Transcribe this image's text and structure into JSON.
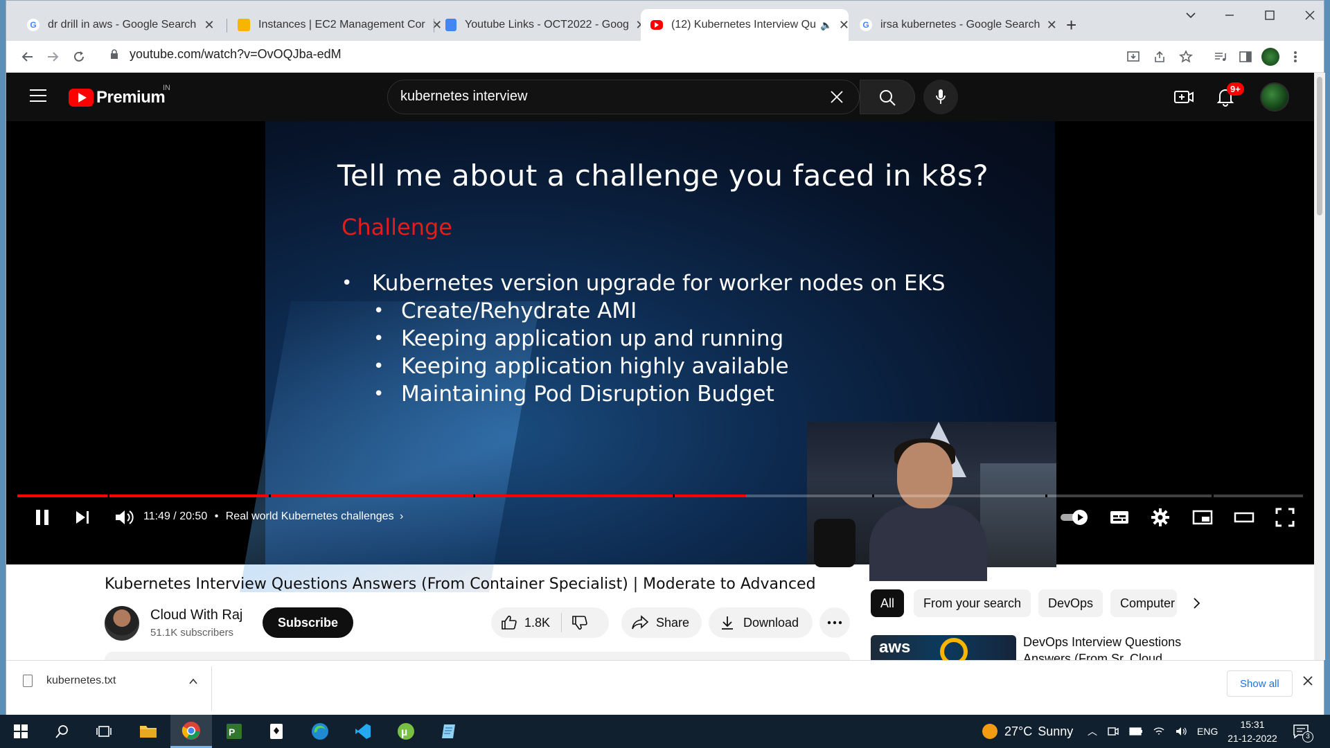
{
  "browser": {
    "tabs": [
      {
        "title": "dr drill in aws - Google Search",
        "favicon": "google-icon",
        "active": false
      },
      {
        "title": "Instances | EC2 Management Cor",
        "favicon": "aws-icon",
        "active": false
      },
      {
        "title": "Youtube Links - OCT2022 - Goog",
        "favicon": "google-docs-icon",
        "active": false
      },
      {
        "title": "(12) Kubernetes Interview Qu",
        "favicon": "youtube-icon",
        "active": true,
        "audio": true
      },
      {
        "title": "irsa kubernetes - Google Search",
        "favicon": "google-icon",
        "active": false
      }
    ],
    "url": "youtube.com/watch?v=OvOQJba-edM"
  },
  "youtube": {
    "logo_text": "Premium",
    "country_code": "IN",
    "search_value": "kubernetes interview",
    "notification_count": "9+",
    "player": {
      "slide_title": "Tell me about a challenge you faced in k8s?",
      "slide_subtitle": "Challenge",
      "bullets": [
        {
          "text": "Kubernetes version upgrade for worker nodes on EKS",
          "level": 1
        },
        {
          "text": "Create/Rehydrate AMI",
          "level": 2
        },
        {
          "text": "Keeping application up and running",
          "level": 2
        },
        {
          "text": "Keeping application highly available",
          "level": 2
        },
        {
          "text": "Maintaining Pod Disruption Budget",
          "level": 2
        }
      ],
      "time_current": "11:49",
      "time_total": "20:50",
      "time_display": "11:49 / 20:50",
      "chapter": "Real world Kubernetes challenges",
      "progress_fraction": 0.567
    },
    "video_title": "Kubernetes Interview Questions Answers (From Container Specialist) | Moderate to Advanced",
    "channel": {
      "name": "Cloud With Raj",
      "subscribers": "51.1K subscribers",
      "subscribe_label": "Subscribe"
    },
    "actions": {
      "likes": "1.8K",
      "share_label": "Share",
      "download_label": "Download"
    },
    "chips": [
      "All",
      "From your search",
      "DevOps",
      "Computer"
    ],
    "recommendation": {
      "title": "DevOps Interview Questions Answers (From Sr. Cloud",
      "thumb_text": "aws"
    }
  },
  "download_bar": {
    "file_name": "kubernetes.txt",
    "show_all_label": "Show all"
  },
  "taskbar": {
    "weather_temp": "27°C",
    "weather_desc": "Sunny",
    "language": "ENG",
    "time": "15:31",
    "date": "21-12-2022",
    "notification_count": "3"
  },
  "colors": {
    "youtube_red": "#ff0000",
    "player_bg": "#000000",
    "slide_accent": "#e81b1b",
    "chrome_tab_bg": "#dee1e6",
    "taskbar_bg": "#10202f"
  }
}
